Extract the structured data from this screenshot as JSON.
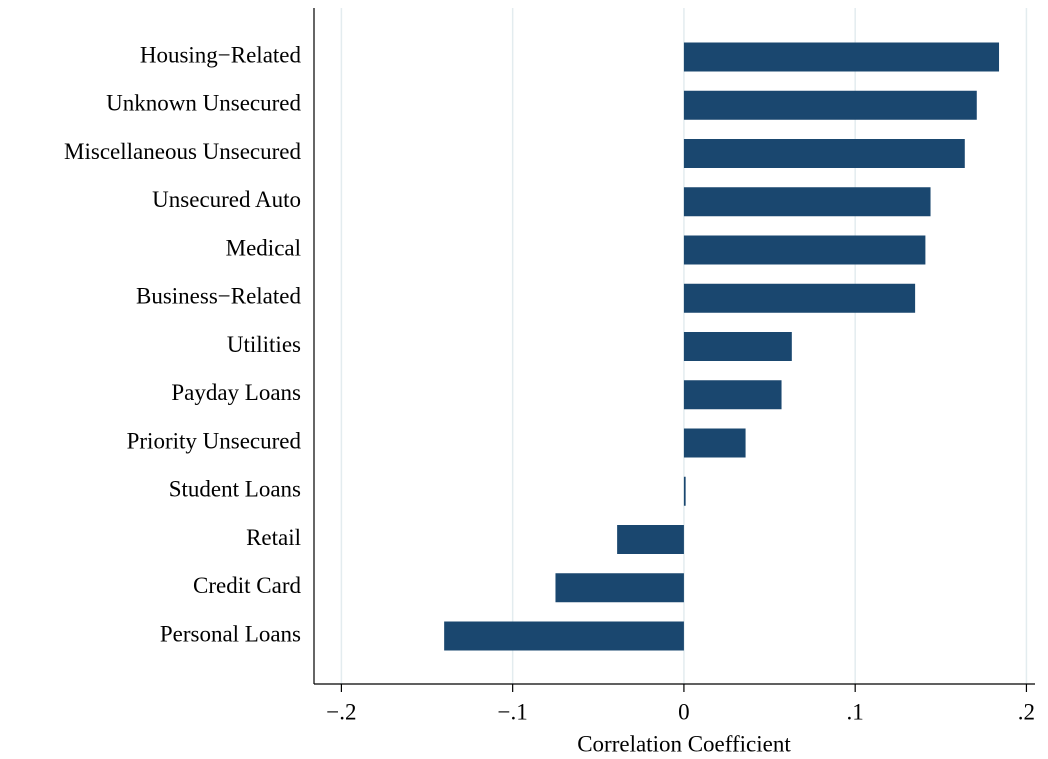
{
  "chart_data": {
    "type": "bar",
    "orientation": "horizontal",
    "x_label": "Correlation Coefficient",
    "categories": [
      "Housing−Related",
      "Unknown Unsecured",
      "Miscellaneous Unsecured",
      "Unsecured Auto",
      "Medical",
      "Business−Related",
      "Utilities",
      "Payday Loans",
      "Priority Unsecured",
      "Student Loans",
      "Retail",
      "Credit Card",
      "Personal Loans"
    ],
    "values": [
      0.184,
      0.171,
      0.164,
      0.144,
      0.141,
      0.135,
      0.063,
      0.057,
      0.036,
      0.001,
      -0.039,
      -0.075,
      -0.14
    ],
    "color": "#1a476f",
    "xlim": [
      -0.216,
      0.205
    ],
    "xticks": [
      {
        "value": -0.2,
        "label": "−.2"
      },
      {
        "value": -0.1,
        "label": "−.1"
      },
      0,
      {
        "value": 0.1,
        "label": ".1"
      },
      {
        "value": 0.2,
        "label": ".2"
      }
    ],
    "grid": true
  }
}
